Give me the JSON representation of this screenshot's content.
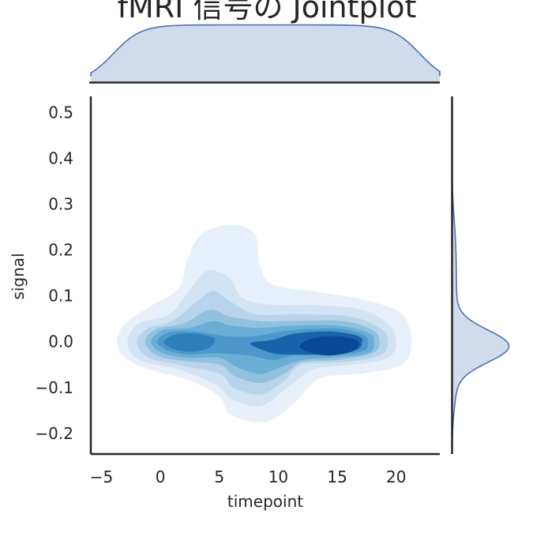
{
  "chart_data": {
    "type": "jointplot-kde",
    "title": "fMRI 信号の Jointplot",
    "xlabel": "timepoint",
    "ylabel": "signal",
    "xlim": [
      -5.9,
      23.7
    ],
    "ylim": [
      -0.245,
      0.535
    ],
    "x_ticks": [
      -5,
      0,
      5,
      10,
      15,
      20
    ],
    "y_ticks": [
      -0.2,
      -0.1,
      0.0,
      0.1,
      0.2,
      0.3,
      0.4,
      0.5
    ],
    "x_tick_labels": [
      "−5",
      "0",
      "5",
      "10",
      "15",
      "20"
    ],
    "y_tick_labels": [
      "−0.2",
      "−0.1",
      "0.0",
      "0.1",
      "0.2",
      "0.3",
      "0.4",
      "0.5"
    ],
    "joint_fill_colors": [
      "#e7f0fa",
      "#d2e3f3",
      "#b7d4ea",
      "#92c0df",
      "#6aaed6",
      "#4d98cb",
      "#2f7ebc",
      "#1764ab",
      "#084b94"
    ],
    "marginal_color": "#4c72b0",
    "marginal_fill": "#d0dbeb",
    "kde_modes": [
      {
        "x": 2.0,
        "y": -0.005,
        "note": "secondary peak"
      },
      {
        "x": 15.0,
        "y": -0.015,
        "note": "primary peak"
      }
    ],
    "marginal_x_range": [
      -4.0,
      22.0
    ],
    "marginal_y_peak": -0.01,
    "grid": false
  }
}
